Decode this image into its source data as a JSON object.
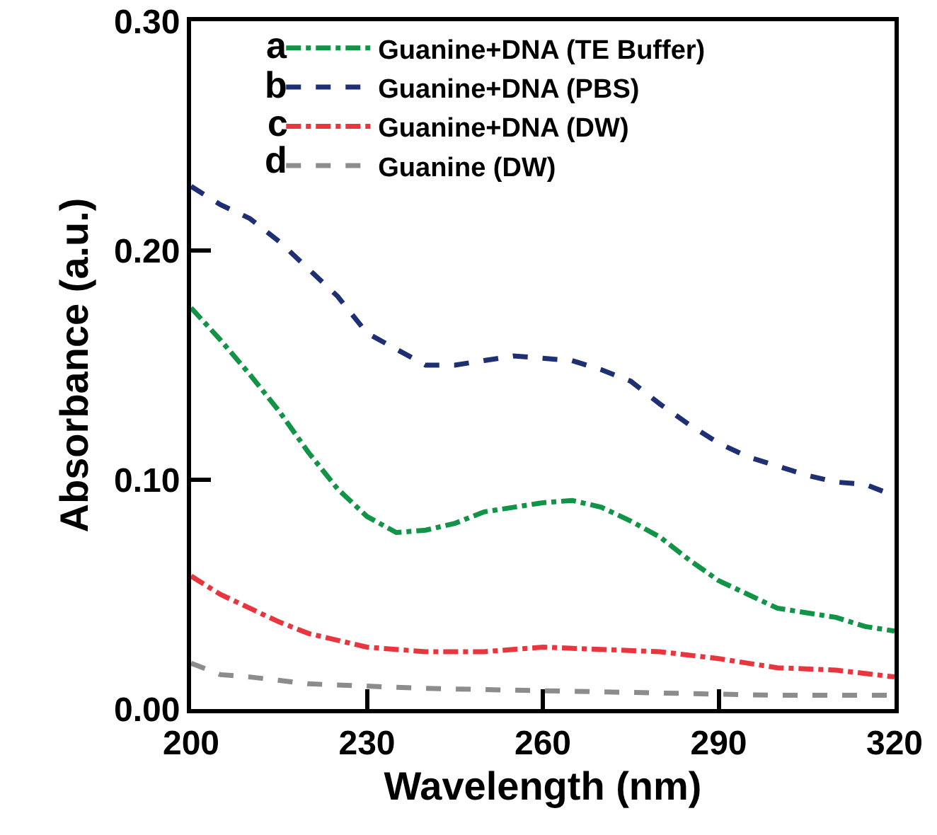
{
  "chart_data": {
    "type": "line",
    "xlabel": "Wavelength (nm)",
    "ylabel": "Absorbance (a.u.)",
    "xlim": [
      200,
      320
    ],
    "xticks": [
      200,
      230,
      260,
      290,
      320
    ],
    "ylim": [
      0,
      0.3
    ],
    "yticks": [
      {
        "value": 0,
        "label": "0.00"
      },
      {
        "value": 0.1,
        "label": "0.10"
      },
      {
        "value": 0.2,
        "label": "0.20"
      },
      {
        "value": 0.3,
        "label": "0.30"
      }
    ],
    "legend": "top left",
    "marker": "none",
    "annotations": [
      "a",
      "b",
      "c",
      "d"
    ],
    "series": [
      {
        "name": "Guanine+DNA (TE Buffer)",
        "color": "#119447",
        "line_style": "dashdot",
        "x": [
          200,
          205,
          210,
          215,
          220,
          225,
          230,
          235,
          240,
          245,
          250,
          255,
          260,
          265,
          270,
          275,
          280,
          285,
          290,
          295,
          300,
          305,
          310,
          315,
          320
        ],
        "values": [
          0.175,
          0.161,
          0.146,
          0.13,
          0.112,
          0.096,
          0.084,
          0.077,
          0.078,
          0.081,
          0.086,
          0.088,
          0.09,
          0.091,
          0.088,
          0.082,
          0.075,
          0.065,
          0.056,
          0.05,
          0.044,
          0.042,
          0.04,
          0.036,
          0.034
        ]
      },
      {
        "name": "Guanine+DNA (PBS)",
        "color": "#1f2f73",
        "line_style": "dashed",
        "x": [
          200,
          205,
          210,
          215,
          220,
          225,
          230,
          235,
          240,
          245,
          250,
          255,
          260,
          265,
          270,
          275,
          280,
          285,
          290,
          295,
          300,
          305,
          310,
          315,
          320
        ],
        "values": [
          0.228,
          0.22,
          0.214,
          0.204,
          0.192,
          0.18,
          0.164,
          0.157,
          0.15,
          0.15,
          0.152,
          0.154,
          0.153,
          0.152,
          0.148,
          0.143,
          0.133,
          0.124,
          0.116,
          0.11,
          0.106,
          0.102,
          0.099,
          0.098,
          0.093
        ]
      },
      {
        "name": "Guanine+DNA (DW)",
        "color": "#e8363f",
        "line_style": "dashdot",
        "x": [
          200,
          205,
          210,
          215,
          220,
          225,
          230,
          240,
          250,
          260,
          270,
          280,
          290,
          300,
          310,
          320
        ],
        "values": [
          0.058,
          0.05,
          0.044,
          0.038,
          0.033,
          0.03,
          0.027,
          0.025,
          0.025,
          0.027,
          0.026,
          0.025,
          0.022,
          0.018,
          0.017,
          0.014
        ]
      },
      {
        "name": "Guanine (DW)",
        "color": "#8c8c8c",
        "line_style": "dashed",
        "x": [
          200,
          205,
          210,
          220,
          240,
          260,
          280,
          300,
          320
        ],
        "values": [
          0.02,
          0.015,
          0.014,
          0.011,
          0.009,
          0.008,
          0.007,
          0.006,
          0.006
        ]
      }
    ]
  }
}
